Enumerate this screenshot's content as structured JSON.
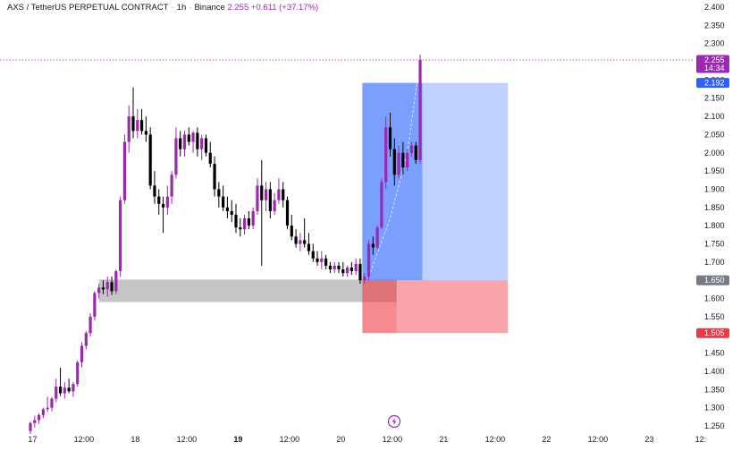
{
  "legend": {
    "symbol": "AXS / TetherUS PERPETUAL CONTRACT",
    "interval": "1h",
    "exchange": "Binance",
    "price": "2.255",
    "change": "+0.611 (+37.17%)"
  },
  "price_axis": {
    "ticks": [
      "2.400",
      "2.350",
      "2.300",
      "2.250",
      "2.200",
      "2.150",
      "2.100",
      "2.050",
      "2.000",
      "1.950",
      "1.900",
      "1.850",
      "1.800",
      "1.750",
      "1.700",
      "1.650",
      "1.600",
      "1.550",
      "1.500",
      "1.450",
      "1.400",
      "1.350",
      "1.300",
      "1.250"
    ]
  },
  "time_axis": {
    "ticks": [
      {
        "label": "17",
        "x": 0.5,
        "bold": false
      },
      {
        "label": "12:00",
        "x": 12.5,
        "bold": false
      },
      {
        "label": "18",
        "x": 24.5,
        "bold": false
      },
      {
        "label": "12:00",
        "x": 36.5,
        "bold": false
      },
      {
        "label": "19",
        "x": 48.5,
        "bold": true
      },
      {
        "label": "12:00",
        "x": 60.5,
        "bold": false
      },
      {
        "label": "20",
        "x": 72.5,
        "bold": false
      },
      {
        "label": "12:00",
        "x": 84.5,
        "bold": false
      },
      {
        "label": "21",
        "x": 96.5,
        "bold": false
      },
      {
        "label": "12:00",
        "x": 108.5,
        "bold": false
      },
      {
        "label": "22",
        "x": 120.5,
        "bold": false
      },
      {
        "label": "12:00",
        "x": 132.5,
        "bold": false
      },
      {
        "label": "23",
        "x": 144.5,
        "bold": false
      },
      {
        "label": "12:",
        "x": 156.5,
        "bold": false
      }
    ]
  },
  "badges": {
    "last_price": "2.255",
    "countdown": "14:34",
    "target": "2.192",
    "entry": "1.650",
    "stop": "1.505"
  },
  "colors": {
    "bull": "#9c27b0",
    "bear": "#000000",
    "profit_zone_dark": "#2962ff",
    "profit_zone_light": "#5c8bff",
    "loss_zone": "#f23645",
    "support_zone": "#9e9e9e",
    "last_price_badge": "#9c27b0",
    "target_badge": "#2962ff",
    "entry_badge": "#787b86",
    "stop_badge": "#f23645"
  },
  "chart_data": {
    "type": "candlestick",
    "title": "AXS / TetherUS PERPETUAL CONTRACT",
    "interval": "1h",
    "x_unit": "hours from 17 00:00",
    "ylim": [
      1.23,
      2.41
    ],
    "xlim": [
      -1,
      158
    ],
    "grid": false,
    "candles": [
      {
        "x": 0,
        "o": 1.236,
        "h": 1.262,
        "l": 1.228,
        "c": 1.258
      },
      {
        "x": 1,
        "o": 1.258,
        "h": 1.278,
        "l": 1.246,
        "c": 1.266
      },
      {
        "x": 2,
        "o": 1.266,
        "h": 1.285,
        "l": 1.256,
        "c": 1.28
      },
      {
        "x": 3,
        "o": 1.28,
        "h": 1.3,
        "l": 1.272,
        "c": 1.296
      },
      {
        "x": 4,
        "o": 1.296,
        "h": 1.33,
        "l": 1.288,
        "c": 1.3
      },
      {
        "x": 5,
        "o": 1.3,
        "h": 1.33,
        "l": 1.29,
        "c": 1.325
      },
      {
        "x": 6,
        "o": 1.325,
        "h": 1.38,
        "l": 1.315,
        "c": 1.358
      },
      {
        "x": 7,
        "o": 1.358,
        "h": 1.41,
        "l": 1.332,
        "c": 1.34
      },
      {
        "x": 8,
        "o": 1.34,
        "h": 1.37,
        "l": 1.325,
        "c": 1.355
      },
      {
        "x": 9,
        "o": 1.355,
        "h": 1.38,
        "l": 1.34,
        "c": 1.345
      },
      {
        "x": 10,
        "o": 1.345,
        "h": 1.37,
        "l": 1.33,
        "c": 1.365
      },
      {
        "x": 11,
        "o": 1.365,
        "h": 1.43,
        "l": 1.358,
        "c": 1.425
      },
      {
        "x": 12,
        "o": 1.425,
        "h": 1.48,
        "l": 1.41,
        "c": 1.47
      },
      {
        "x": 13,
        "o": 1.47,
        "h": 1.51,
        "l": 1.46,
        "c": 1.505
      },
      {
        "x": 14,
        "o": 1.505,
        "h": 1.56,
        "l": 1.495,
        "c": 1.55
      },
      {
        "x": 15,
        "o": 1.55,
        "h": 1.62,
        "l": 1.54,
        "c": 1.615
      },
      {
        "x": 16,
        "o": 1.615,
        "h": 1.64,
        "l": 1.6,
        "c": 1.63
      },
      {
        "x": 17,
        "o": 1.63,
        "h": 1.65,
        "l": 1.612,
        "c": 1.625
      },
      {
        "x": 18,
        "o": 1.625,
        "h": 1.66,
        "l": 1.605,
        "c": 1.645
      },
      {
        "x": 19,
        "o": 1.645,
        "h": 1.66,
        "l": 1.61,
        "c": 1.62
      },
      {
        "x": 20,
        "o": 1.62,
        "h": 1.68,
        "l": 1.612,
        "c": 1.675
      },
      {
        "x": 21,
        "o": 1.675,
        "h": 1.88,
        "l": 1.66,
        "c": 1.87
      },
      {
        "x": 22,
        "o": 1.87,
        "h": 2.05,
        "l": 1.86,
        "c": 2.03
      },
      {
        "x": 23,
        "o": 2.03,
        "h": 2.13,
        "l": 2.0,
        "c": 2.1
      },
      {
        "x": 24,
        "o": 2.1,
        "h": 2.18,
        "l": 2.04,
        "c": 2.06
      },
      {
        "x": 25,
        "o": 2.06,
        "h": 2.12,
        "l": 2.04,
        "c": 2.09
      },
      {
        "x": 26,
        "o": 2.09,
        "h": 2.12,
        "l": 2.05,
        "c": 2.06
      },
      {
        "x": 27,
        "o": 2.06,
        "h": 2.1,
        "l": 2.03,
        "c": 2.05
      },
      {
        "x": 28,
        "o": 2.05,
        "h": 2.07,
        "l": 1.9,
        "c": 1.91
      },
      {
        "x": 29,
        "o": 1.91,
        "h": 1.95,
        "l": 1.86,
        "c": 1.88
      },
      {
        "x": 30,
        "o": 1.88,
        "h": 1.9,
        "l": 1.83,
        "c": 1.86
      },
      {
        "x": 31,
        "o": 1.86,
        "h": 1.88,
        "l": 1.78,
        "c": 1.85
      },
      {
        "x": 32,
        "o": 1.85,
        "h": 1.91,
        "l": 1.83,
        "c": 1.88
      },
      {
        "x": 33,
        "o": 1.88,
        "h": 1.95,
        "l": 1.86,
        "c": 1.94
      },
      {
        "x": 34,
        "o": 1.94,
        "h": 2.07,
        "l": 1.93,
        "c": 2.04
      },
      {
        "x": 35,
        "o": 2.04,
        "h": 2.06,
        "l": 1.99,
        "c": 2.01
      },
      {
        "x": 36,
        "o": 2.01,
        "h": 2.06,
        "l": 1.99,
        "c": 2.05
      },
      {
        "x": 37,
        "o": 2.05,
        "h": 2.07,
        "l": 2.02,
        "c": 2.03
      },
      {
        "x": 38,
        "o": 2.03,
        "h": 2.06,
        "l": 2.0,
        "c": 2.055
      },
      {
        "x": 39,
        "o": 2.055,
        "h": 2.07,
        "l": 1.99,
        "c": 2.01
      },
      {
        "x": 40,
        "o": 2.01,
        "h": 2.05,
        "l": 1.98,
        "c": 2.04
      },
      {
        "x": 41,
        "o": 2.04,
        "h": 2.05,
        "l": 1.99,
        "c": 2.0
      },
      {
        "x": 42,
        "o": 2.0,
        "h": 2.03,
        "l": 1.96,
        "c": 1.97
      },
      {
        "x": 43,
        "o": 1.97,
        "h": 1.99,
        "l": 1.88,
        "c": 1.9
      },
      {
        "x": 44,
        "o": 1.9,
        "h": 1.92,
        "l": 1.85,
        "c": 1.88
      },
      {
        "x": 45,
        "o": 1.88,
        "h": 1.91,
        "l": 1.84,
        "c": 1.85
      },
      {
        "x": 46,
        "o": 1.85,
        "h": 1.88,
        "l": 1.82,
        "c": 1.84
      },
      {
        "x": 47,
        "o": 1.84,
        "h": 1.87,
        "l": 1.81,
        "c": 1.83
      },
      {
        "x": 48,
        "o": 1.83,
        "h": 1.86,
        "l": 1.78,
        "c": 1.795
      },
      {
        "x": 49,
        "o": 1.795,
        "h": 1.82,
        "l": 1.77,
        "c": 1.79
      },
      {
        "x": 50,
        "o": 1.79,
        "h": 1.83,
        "l": 1.775,
        "c": 1.82
      },
      {
        "x": 51,
        "o": 1.82,
        "h": 1.84,
        "l": 1.79,
        "c": 1.8
      },
      {
        "x": 52,
        "o": 1.8,
        "h": 1.85,
        "l": 1.79,
        "c": 1.84
      },
      {
        "x": 53,
        "o": 1.84,
        "h": 1.93,
        "l": 1.83,
        "c": 1.91
      },
      {
        "x": 54,
        "o": 1.91,
        "h": 1.98,
        "l": 1.69,
        "c": 1.87
      },
      {
        "x": 55,
        "o": 1.87,
        "h": 1.92,
        "l": 1.84,
        "c": 1.9
      },
      {
        "x": 56,
        "o": 1.9,
        "h": 1.92,
        "l": 1.82,
        "c": 1.84
      },
      {
        "x": 57,
        "o": 1.84,
        "h": 1.89,
        "l": 1.83,
        "c": 1.87
      },
      {
        "x": 58,
        "o": 1.87,
        "h": 1.93,
        "l": 1.86,
        "c": 1.9
      },
      {
        "x": 59,
        "o": 1.9,
        "h": 1.92,
        "l": 1.85,
        "c": 1.87
      },
      {
        "x": 60,
        "o": 1.87,
        "h": 1.88,
        "l": 1.79,
        "c": 1.8
      },
      {
        "x": 61,
        "o": 1.8,
        "h": 1.83,
        "l": 1.76,
        "c": 1.77
      },
      {
        "x": 62,
        "o": 1.77,
        "h": 1.79,
        "l": 1.74,
        "c": 1.75
      },
      {
        "x": 63,
        "o": 1.75,
        "h": 1.78,
        "l": 1.73,
        "c": 1.76
      },
      {
        "x": 64,
        "o": 1.76,
        "h": 1.82,
        "l": 1.74,
        "c": 1.75
      },
      {
        "x": 65,
        "o": 1.75,
        "h": 1.78,
        "l": 1.72,
        "c": 1.73
      },
      {
        "x": 66,
        "o": 1.73,
        "h": 1.75,
        "l": 1.7,
        "c": 1.71
      },
      {
        "x": 67,
        "o": 1.71,
        "h": 1.73,
        "l": 1.69,
        "c": 1.7
      },
      {
        "x": 68,
        "o": 1.7,
        "h": 1.73,
        "l": 1.68,
        "c": 1.71
      },
      {
        "x": 69,
        "o": 1.71,
        "h": 1.72,
        "l": 1.68,
        "c": 1.69
      },
      {
        "x": 70,
        "o": 1.69,
        "h": 1.7,
        "l": 1.67,
        "c": 1.68
      },
      {
        "x": 71,
        "o": 1.68,
        "h": 1.7,
        "l": 1.67,
        "c": 1.69
      },
      {
        "x": 72,
        "o": 1.69,
        "h": 1.7,
        "l": 1.67,
        "c": 1.68
      },
      {
        "x": 73,
        "o": 1.68,
        "h": 1.7,
        "l": 1.66,
        "c": 1.67
      },
      {
        "x": 74,
        "o": 1.67,
        "h": 1.69,
        "l": 1.66,
        "c": 1.685
      },
      {
        "x": 75,
        "o": 1.685,
        "h": 1.7,
        "l": 1.665,
        "c": 1.675
      },
      {
        "x": 76,
        "o": 1.675,
        "h": 1.71,
        "l": 1.665,
        "c": 1.695
      },
      {
        "x": 77,
        "o": 1.695,
        "h": 1.71,
        "l": 1.64,
        "c": 1.65
      },
      {
        "x": 78,
        "o": 1.65,
        "h": 1.67,
        "l": 1.64,
        "c": 1.66
      },
      {
        "x": 79,
        "o": 1.66,
        "h": 1.76,
        "l": 1.65,
        "c": 1.75
      },
      {
        "x": 80,
        "o": 1.75,
        "h": 1.77,
        "l": 1.72,
        "c": 1.74
      },
      {
        "x": 81,
        "o": 1.74,
        "h": 1.8,
        "l": 1.735,
        "c": 1.795
      },
      {
        "x": 82,
        "o": 1.795,
        "h": 1.93,
        "l": 1.79,
        "c": 1.92
      },
      {
        "x": 83,
        "o": 1.92,
        "h": 2.1,
        "l": 1.9,
        "c": 2.07
      },
      {
        "x": 84,
        "o": 2.07,
        "h": 2.11,
        "l": 1.99,
        "c": 2.01
      },
      {
        "x": 85,
        "o": 2.01,
        "h": 2.04,
        "l": 1.91,
        "c": 1.94
      },
      {
        "x": 86,
        "o": 1.94,
        "h": 2.02,
        "l": 1.93,
        "c": 2.0
      },
      {
        "x": 87,
        "o": 2.0,
        "h": 2.03,
        "l": 1.94,
        "c": 1.96
      },
      {
        "x": 88,
        "o": 1.96,
        "h": 2.01,
        "l": 1.95,
        "c": 2.0
      },
      {
        "x": 89,
        "o": 2.0,
        "h": 2.03,
        "l": 1.99,
        "c": 2.02
      },
      {
        "x": 90,
        "o": 2.02,
        "h": 2.03,
        "l": 1.97,
        "c": 1.98
      },
      {
        "x": 91,
        "o": 1.98,
        "h": 2.27,
        "l": 1.97,
        "c": 2.255
      }
    ],
    "zones": {
      "profit": {
        "x_start": 77.5,
        "x_end": 111.5,
        "y_low": 1.65,
        "y_high": 2.192
      },
      "profit_filled_until": 91.5,
      "loss": {
        "x_start": 77.5,
        "x_end": 111.5,
        "y_low": 1.505,
        "y_high": 1.65
      },
      "loss_filled_until": 85.5,
      "support": {
        "x_start": 16,
        "x_end": 85.5,
        "y_low": 1.59,
        "y_high": 1.652
      }
    },
    "last_price": 2.255
  }
}
